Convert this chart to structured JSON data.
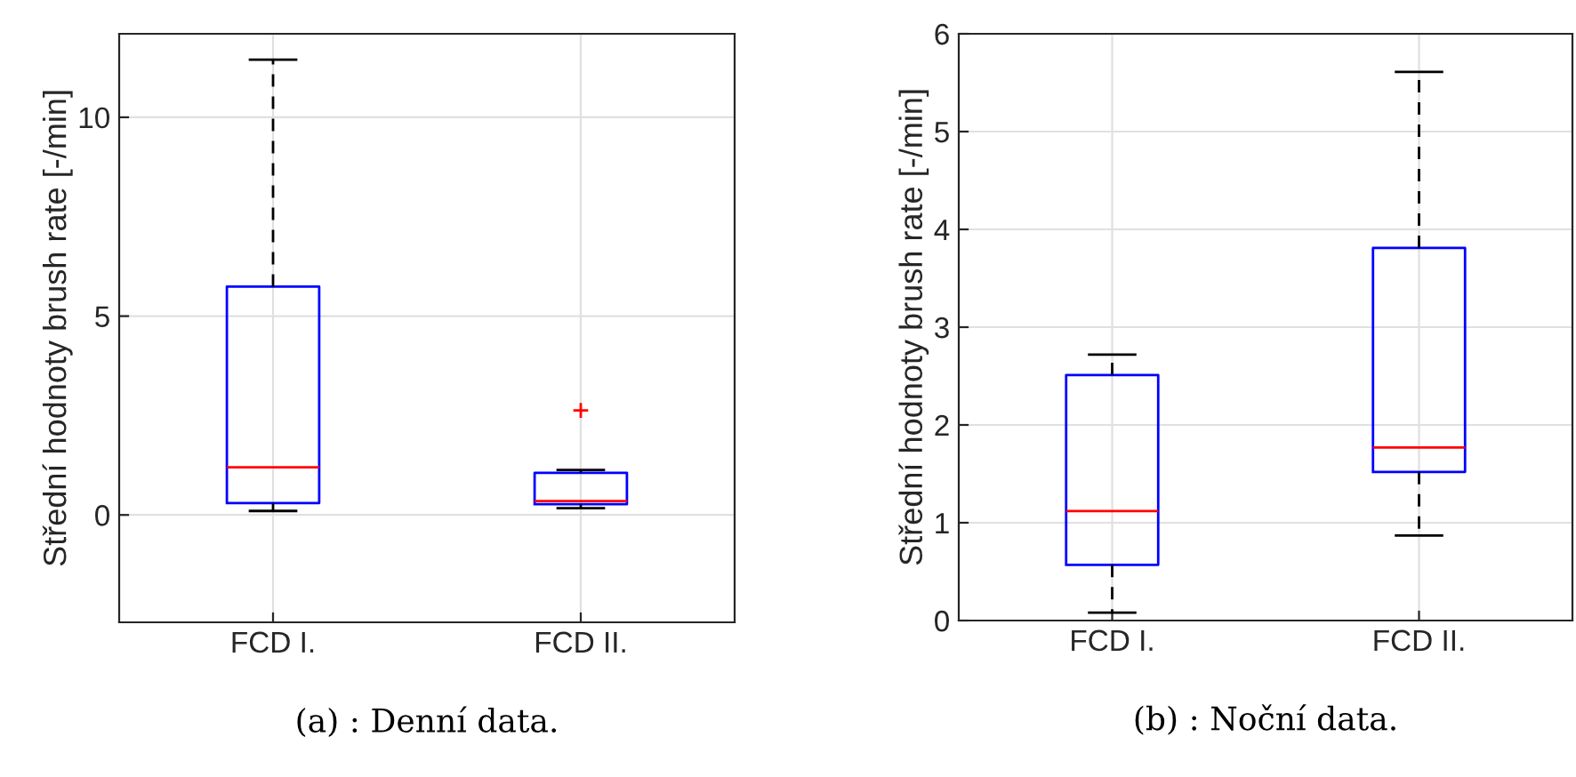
{
  "chart_data": [
    {
      "type": "box",
      "categories": [
        "FCD I.",
        "FCD II."
      ],
      "ylabel": "Střední hodnoty brush rate [-/min]",
      "ylim": [
        -2.7,
        12.1
      ],
      "yticks": [
        0,
        5,
        10
      ],
      "grid": true,
      "boxes": [
        {
          "low": 0.1,
          "q1": 0.3,
          "median": 1.2,
          "q3": 5.74,
          "high": 11.45
        },
        {
          "low": 0.17,
          "q1": 0.27,
          "median": 0.35,
          "q3": 1.06,
          "high": 1.13,
          "outliers": [
            2.63
          ]
        }
      ],
      "annotations": [
        "(a) : Denní data."
      ]
    },
    {
      "type": "box",
      "categories": [
        "FCD I.",
        "FCD II."
      ],
      "ylabel": "Střední hodnoty brush rate [-/min]",
      "ylim": [
        0,
        6
      ],
      "yticks": [
        0,
        1,
        2,
        3,
        4,
        5,
        6
      ],
      "grid": true,
      "boxes": [
        {
          "low": 0.08,
          "q1": 0.57,
          "median": 1.12,
          "q3": 2.51,
          "high": 2.72
        },
        {
          "low": 0.87,
          "q1": 1.52,
          "median": 1.77,
          "q3": 3.81,
          "high": 5.61
        }
      ],
      "annotations": [
        "(b) : Noční data."
      ]
    }
  ]
}
